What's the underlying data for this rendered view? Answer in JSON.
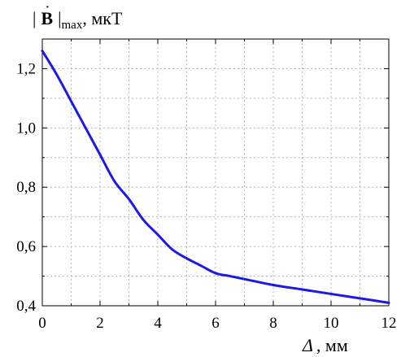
{
  "chart_data": {
    "type": "line",
    "title": "",
    "ylabel": {
      "bar_left": "|",
      "symbol": "B",
      "bar_right": "|",
      "subscript": "max",
      "unit": ", мкТ"
    },
    "xlabel": {
      "symbol": "Δ",
      "unit": ", мм"
    },
    "xlim": [
      0,
      12
    ],
    "ylim": [
      0.4,
      1.3
    ],
    "x_ticks": [
      0,
      2,
      4,
      6,
      8,
      10,
      12
    ],
    "x_tick_labels": [
      "0",
      "2",
      "4",
      "6",
      "8",
      "10",
      "12"
    ],
    "y_ticks": [
      0.4,
      0.6,
      0.8,
      1.0,
      1.2
    ],
    "y_tick_labels": [
      "0,4",
      "0,6",
      "0,8",
      "1,0",
      "1,2"
    ],
    "grid": true,
    "series": [
      {
        "color": "#1a1ae6",
        "x": [
          0,
          0.5,
          1,
          1.5,
          2,
          2.5,
          3,
          3.5,
          4,
          4.5,
          5,
          5.5,
          6,
          6.5,
          7,
          8,
          9,
          10,
          11,
          12
        ],
        "y": [
          1.26,
          1.18,
          1.09,
          1.0,
          0.91,
          0.82,
          0.76,
          0.69,
          0.64,
          0.59,
          0.56,
          0.535,
          0.51,
          0.5,
          0.49,
          0.47,
          0.455,
          0.44,
          0.425,
          0.41
        ]
      }
    ]
  }
}
